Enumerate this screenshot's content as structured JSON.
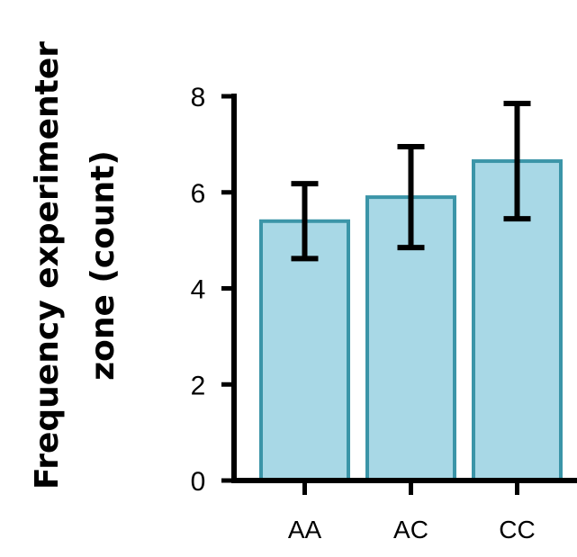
{
  "chart_data": {
    "type": "bar",
    "categories": [
      "AA",
      "AC",
      "CC"
    ],
    "series": [
      {
        "values": [
          5.4,
          5.9,
          6.65
        ],
        "errors": [
          0.78,
          1.05,
          1.2
        ]
      }
    ],
    "title": "",
    "xlabel": "",
    "ylabel_lines": [
      "Frequency experimenter",
      "zone (count)"
    ],
    "ylim": [
      0,
      8
    ],
    "yticks": [
      0,
      2,
      4,
      6,
      8
    ],
    "grid": false,
    "legend": "none",
    "colors": {
      "bar_fill": "#a8d8e6",
      "bar_edge": "#3b95a8",
      "axis": "#000000",
      "error_bar": "#000000"
    }
  }
}
